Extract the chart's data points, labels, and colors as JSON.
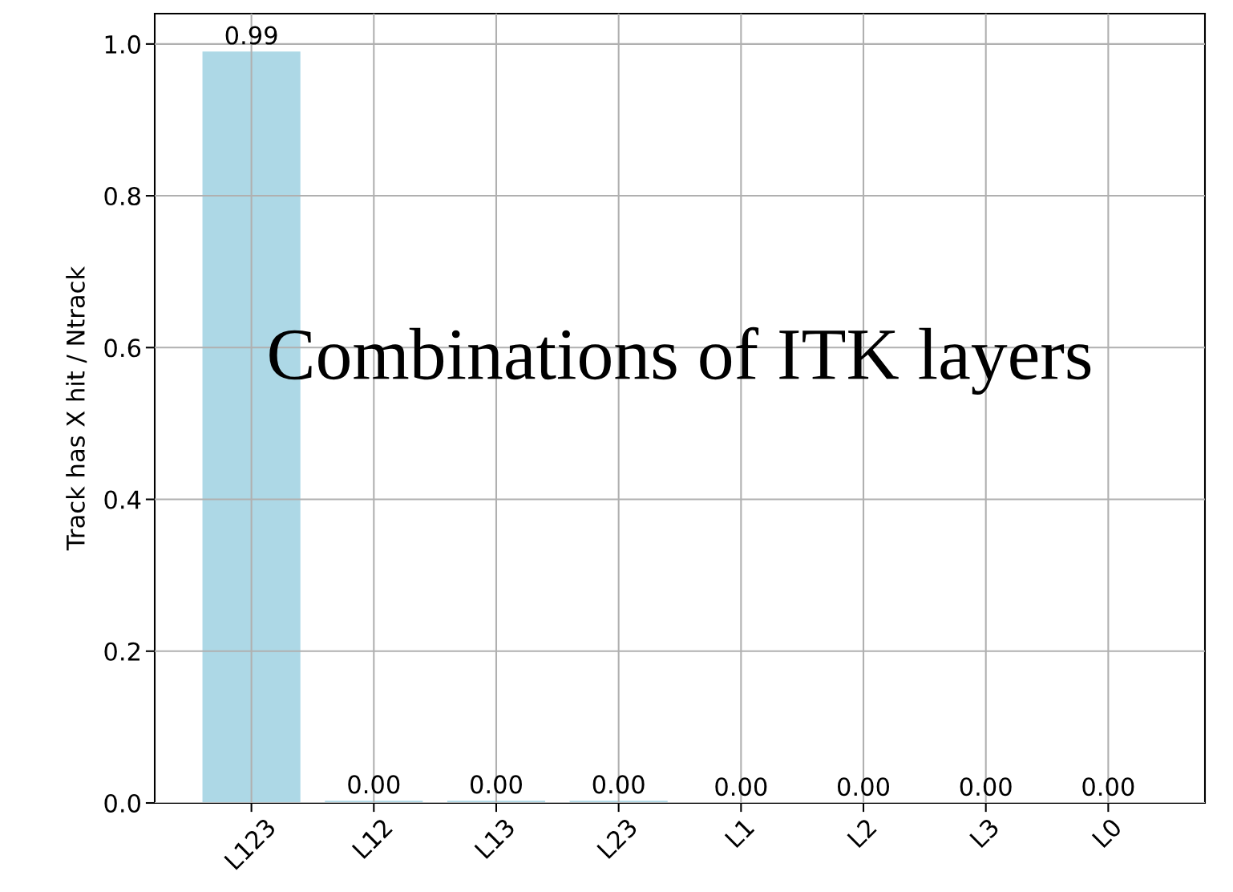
{
  "chart_data": {
    "type": "bar",
    "title": "Combinations of ITK layers",
    "ylabel": "Track has X hit / Ntrack",
    "categories": [
      "L123",
      "L12",
      "L13",
      "L23",
      "L1",
      "L2",
      "L3",
      "L0"
    ],
    "values": [
      0.99,
      0.003,
      0.003,
      0.003,
      0,
      0,
      0,
      0
    ],
    "value_labels": [
      "0.99",
      "0.00",
      "0.00",
      "0.00",
      "0.00",
      "0.00",
      "0.00",
      "0.00"
    ],
    "color": "#add8e6",
    "ylim": [
      0,
      1.04
    ],
    "yticks": [
      {
        "value": 0,
        "label": "0.0"
      },
      {
        "value": 0.2,
        "label": "0.2"
      },
      {
        "value": 0.4,
        "label": "0.4"
      },
      {
        "value": 0.6,
        "label": "0.6"
      },
      {
        "value": 0.8,
        "label": "0.8"
      },
      {
        "value": 1,
        "label": "1.0"
      }
    ],
    "grid": true
  }
}
